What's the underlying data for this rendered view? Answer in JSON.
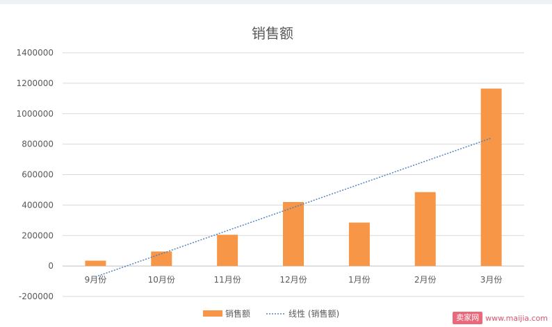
{
  "chart_data": {
    "type": "bar",
    "title": "销售额",
    "categories": [
      "9月份",
      "10月份",
      "11月份",
      "12月份",
      "1月份",
      "2月份",
      "3月份"
    ],
    "series": [
      {
        "name": "销售额",
        "values": [
          35000,
          95000,
          205000,
          420000,
          285000,
          485000,
          1165000
        ]
      }
    ],
    "trendline": {
      "name": "线性 (销售额)",
      "type": "linear"
    },
    "yticks": [
      -200000,
      0,
      200000,
      400000,
      600000,
      800000,
      1000000,
      1200000,
      1400000
    ],
    "ylim": [
      -200000,
      1400000
    ],
    "grid": true,
    "legend_position": "bottom",
    "colors": {
      "bar": "#f79646",
      "trend": "#4f81bd"
    }
  },
  "watermark": {
    "badge": "卖家网",
    "url": "www.maijia.com"
  }
}
